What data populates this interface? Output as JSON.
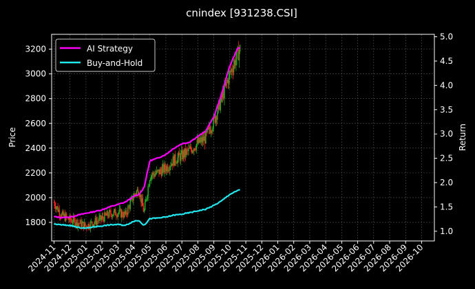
{
  "chart_data": {
    "type": "line",
    "title": "cnindex [931238.CSI]",
    "ylabel": "Price",
    "y2label": "Return",
    "ylim": [
      1650,
      3320
    ],
    "y2lim": [
      0.8,
      5.05
    ],
    "yticks": [
      1800,
      2000,
      2200,
      2400,
      2600,
      2800,
      3000,
      3200
    ],
    "y2ticks": [
      "1.0",
      "1.5",
      "2.0",
      "2.5",
      "3.0",
      "3.5",
      "4.0",
      "4.5",
      "5.0"
    ],
    "y2tick_values": [
      1.0,
      1.5,
      2.0,
      2.5,
      3.0,
      3.5,
      4.0,
      4.5,
      5.0
    ],
    "x_months": [
      "2024-11",
      "2024-12",
      "2025-01",
      "2025-02",
      "2025-03",
      "2025-04",
      "2025-05",
      "2025-06",
      "2025-07",
      "2025-08",
      "2025-09",
      "2025-10",
      "2025-11",
      "2025-12",
      "2026-01",
      "2026-02",
      "2026-03",
      "2026-04",
      "2026-05",
      "2026-06",
      "2026-07",
      "2026-08",
      "2026-09",
      "2026-10"
    ],
    "grid": true,
    "legend_position": "top-left",
    "colors": {
      "ai": "#ff00ff",
      "bh": "#22e8f0",
      "up": "#22aa22",
      "down": "#ff2020",
      "grid": "#555555",
      "background": "#000000"
    },
    "series": [
      {
        "name": "AI Strategy",
        "axis": "right",
        "points": [
          [
            "2024-11-01",
            1.3
          ],
          [
            "2024-11-15",
            1.28
          ],
          [
            "2024-12-01",
            1.29
          ],
          [
            "2024-12-15",
            1.33
          ],
          [
            "2025-01-01",
            1.37
          ],
          [
            "2025-01-15",
            1.4
          ],
          [
            "2025-02-01",
            1.44
          ],
          [
            "2025-02-15",
            1.5
          ],
          [
            "2025-03-01",
            1.55
          ],
          [
            "2025-03-15",
            1.6
          ],
          [
            "2025-04-01",
            1.72
          ],
          [
            "2025-04-10",
            1.75
          ],
          [
            "2025-04-20",
            1.9
          ],
          [
            "2025-05-01",
            2.45
          ],
          [
            "2025-05-15",
            2.5
          ],
          [
            "2025-06-01",
            2.58
          ],
          [
            "2025-06-15",
            2.7
          ],
          [
            "2025-07-01",
            2.8
          ],
          [
            "2025-07-15",
            2.83
          ],
          [
            "2025-08-01",
            2.95
          ],
          [
            "2025-08-15",
            3.05
          ],
          [
            "2025-09-01",
            3.35
          ],
          [
            "2025-09-15",
            3.8
          ],
          [
            "2025-10-01",
            4.4
          ],
          [
            "2025-10-15",
            4.75
          ],
          [
            "2025-10-20",
            4.78
          ]
        ]
      },
      {
        "name": "Buy-and-Hold",
        "axis": "right",
        "points": [
          [
            "2024-11-01",
            1.15
          ],
          [
            "2024-11-15",
            1.13
          ],
          [
            "2024-12-01",
            1.12
          ],
          [
            "2024-12-15",
            1.08
          ],
          [
            "2025-01-01",
            1.06
          ],
          [
            "2025-01-15",
            1.09
          ],
          [
            "2025-02-01",
            1.11
          ],
          [
            "2025-02-15",
            1.13
          ],
          [
            "2025-03-01",
            1.14
          ],
          [
            "2025-03-15",
            1.12
          ],
          [
            "2025-04-01",
            1.21
          ],
          [
            "2025-04-10",
            1.22
          ],
          [
            "2025-04-20",
            1.12
          ],
          [
            "2025-05-01",
            1.26
          ],
          [
            "2025-05-15",
            1.27
          ],
          [
            "2025-06-01",
            1.29
          ],
          [
            "2025-06-15",
            1.33
          ],
          [
            "2025-07-01",
            1.35
          ],
          [
            "2025-07-15",
            1.38
          ],
          [
            "2025-08-01",
            1.42
          ],
          [
            "2025-08-15",
            1.45
          ],
          [
            "2025-09-01",
            1.53
          ],
          [
            "2025-09-15",
            1.62
          ],
          [
            "2025-10-01",
            1.76
          ],
          [
            "2025-10-15",
            1.83
          ],
          [
            "2025-10-20",
            1.86
          ]
        ]
      }
    ],
    "candlesticks_approx": {
      "axis": "left",
      "closes": [
        [
          "2024-11-01",
          1960
        ],
        [
          "2024-11-15",
          1860
        ],
        [
          "2024-12-01",
          1820
        ],
        [
          "2024-12-15",
          1800
        ],
        [
          "2025-01-01",
          1770
        ],
        [
          "2025-01-15",
          1800
        ],
        [
          "2025-02-01",
          1830
        ],
        [
          "2025-02-15",
          1870
        ],
        [
          "2025-03-01",
          1880
        ],
        [
          "2025-03-15",
          1860
        ],
        [
          "2025-04-01",
          2020
        ],
        [
          "2025-04-10",
          2070
        ],
        [
          "2025-04-20",
          1880
        ],
        [
          "2025-05-01",
          2180
        ],
        [
          "2025-05-15",
          2200
        ],
        [
          "2025-06-01",
          2240
        ],
        [
          "2025-06-15",
          2300
        ],
        [
          "2025-07-01",
          2340
        ],
        [
          "2025-07-15",
          2380
        ],
        [
          "2025-08-01",
          2440
        ],
        [
          "2025-08-15",
          2480
        ],
        [
          "2025-09-01",
          2620
        ],
        [
          "2025-09-15",
          2790
        ],
        [
          "2025-10-01",
          3000
        ],
        [
          "2025-10-15",
          3150
        ],
        [
          "2025-10-20",
          3200
        ]
      ]
    }
  }
}
